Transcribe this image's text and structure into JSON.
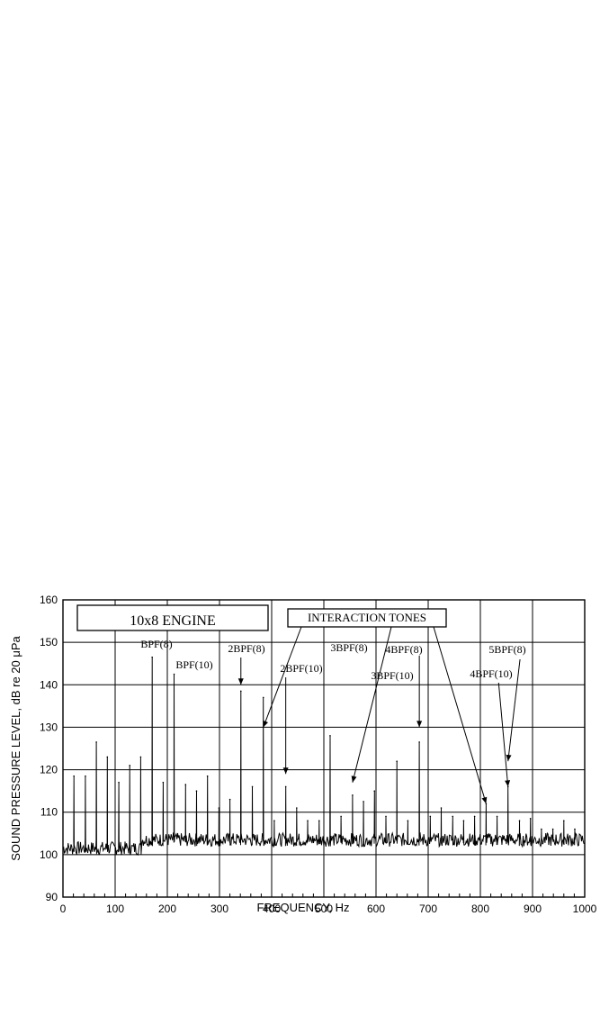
{
  "chart_data": {
    "type": "line",
    "xlabel": "FREQUENCY,  Hz",
    "ylabel": "SOUND PRESSURE LEVEL,  dB re 20 μPa",
    "xlim": [
      0,
      1000
    ],
    "ylim": [
      90,
      160
    ],
    "x_ticks": [
      "0",
      "100",
      "200",
      "300",
      "400",
      "500",
      "600",
      "700",
      "800",
      "900",
      "1000"
    ],
    "y_ticks": [
      "90",
      "100",
      "110",
      "120",
      "130",
      "140",
      "150",
      "160"
    ],
    "grid": true,
    "legend": "none",
    "baseline_db": 103,
    "series": [
      {
        "peaks_x": [
          21,
          43,
          64,
          85,
          107,
          128,
          149,
          171,
          192,
          213,
          235,
          256,
          277,
          299,
          320,
          341,
          363,
          384,
          405,
          427,
          448,
          469,
          491,
          512,
          533,
          555,
          576,
          597,
          619,
          640,
          661,
          683,
          704,
          725,
          747,
          768,
          789,
          811,
          832,
          853,
          875,
          896,
          917,
          939,
          960,
          981
        ],
        "peaks_y": [
          118.5,
          118.5,
          126.5,
          123,
          117,
          121,
          123,
          146.5,
          117,
          142.5,
          116.5,
          115,
          118.5,
          111,
          113,
          138.5,
          116,
          137,
          108,
          116,
          111,
          108,
          108,
          128,
          109,
          114,
          112.5,
          115,
          109,
          122,
          108,
          126.5,
          109,
          111,
          109,
          108,
          109,
          112,
          109,
          116,
          108,
          108.5,
          106,
          106,
          108,
          106
        ]
      }
    ],
    "annotations": [
      {
        "text": "10x8 ENGINE",
        "boxed": true
      },
      {
        "text": "INTERACTION TONES",
        "boxed": true
      },
      {
        "text": "BPF(8)",
        "x": 171
      },
      {
        "text": "BPF(10)",
        "x": 213
      },
      {
        "text": "2BPF(8)",
        "x": 341
      },
      {
        "text": "2BPF(10)",
        "x": 427
      },
      {
        "text": "3BPF(8)",
        "x": 512
      },
      {
        "text": "3BPF(10)",
        "x": 640
      },
      {
        "text": "4BPF(8)",
        "x": 683
      },
      {
        "text": "4BPF(10)",
        "x": 853
      },
      {
        "text": "5BPF(8)",
        "x": 853
      }
    ]
  }
}
